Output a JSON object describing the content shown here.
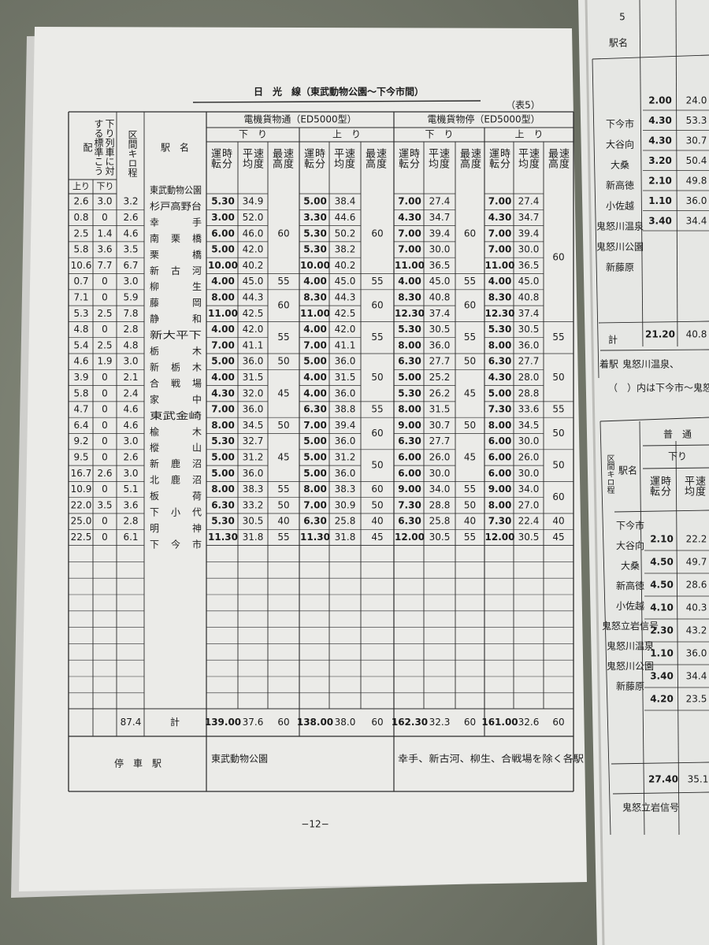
{
  "title": "日　光　線（東武動物公園～下今市間）",
  "table_no": "（表5）",
  "header": {
    "gradient": "下り列車に対する標準こう配",
    "up": "上り",
    "down": "下り",
    "km": "区間キロ程",
    "station": "駅　名",
    "groups": [
      {
        "name": "電機貨物通（ED5000型）",
        "dirs": [
          "下　り",
          "上　り"
        ]
      },
      {
        "name": "電機貨物停（ED5000型）",
        "dirs": [
          "下　り",
          "上　り"
        ]
      }
    ],
    "cols": [
      "運転時分",
      "平均速度",
      "最高速度"
    ]
  },
  "stations": [
    "東武動物公園",
    "杉戸高野台",
    "幸手",
    "南栗橋",
    "栗橋",
    "新古河",
    "柳生",
    "藤岡",
    "静和",
    "新大平下",
    "栃木",
    "新栃木",
    "合戦場",
    "家中",
    "東武金崎",
    "楡木",
    "樅山",
    "新鹿沼",
    "北鹿沼",
    "板荷",
    "下小代",
    "明神",
    "下今市"
  ],
  "intervals": [
    [
      "2.6",
      "3.0",
      "3.2"
    ],
    [
      "0.8",
      "0",
      "2.6"
    ],
    [
      "2.5",
      "1.4",
      "4.6"
    ],
    [
      "5.8",
      "3.6",
      "3.5"
    ],
    [
      "10.6",
      "7.7",
      "6.7"
    ],
    [
      "0.7",
      "0",
      "3.0"
    ],
    [
      "7.1",
      "0",
      "5.9"
    ],
    [
      "5.3",
      "2.5",
      "7.8"
    ],
    [
      "4.8",
      "0",
      "2.8"
    ],
    [
      "5.4",
      "2.5",
      "4.8"
    ],
    [
      "4.6",
      "1.9",
      "3.0"
    ],
    [
      "3.9",
      "0",
      "2.1"
    ],
    [
      "5.8",
      "0",
      "2.4"
    ],
    [
      "4.7",
      "0",
      "4.6"
    ],
    [
      "6.4",
      "0",
      "4.6"
    ],
    [
      "9.2",
      "0",
      "3.0"
    ],
    [
      "9.5",
      "0",
      "2.6"
    ],
    [
      "16.7",
      "2.6",
      "3.0"
    ],
    [
      "10.9",
      "0",
      "5.1"
    ],
    [
      "22.0",
      "3.5",
      "3.6"
    ],
    [
      "25.0",
      "0",
      "2.8"
    ],
    [
      "22.5",
      "0",
      "6.1"
    ]
  ],
  "runs": [
    {
      "times": [
        "5.30",
        "3.00",
        "6.00",
        "5.00",
        "10.00",
        "4.00",
        "8.00",
        "11.00",
        "4.00",
        "7.00",
        "5.00",
        "4.00",
        "4.30",
        "7.00",
        "8.00",
        "5.30",
        "5.00",
        "5.00",
        "8.00",
        "6.30",
        "5.30",
        "11.30"
      ],
      "speeds": [
        "34.9",
        "52.0",
        "46.0",
        "42.0",
        "40.2",
        "45.0",
        "44.3",
        "42.5",
        "42.0",
        "41.1",
        "36.0",
        "31.5",
        "32.0",
        "36.0",
        "34.5",
        "32.7",
        "31.2",
        "36.0",
        "38.3",
        "33.2",
        "30.5",
        "31.8"
      ],
      "max": [
        {
          "text": "60",
          "rows": 5
        },
        {
          "text": "55",
          "rows": 1
        },
        {
          "text": "60",
          "rows": 2
        },
        {
          "text": "55",
          "rows": 2
        },
        {
          "text": "50",
          "rows": 1
        },
        {
          "text": "45",
          "rows": 3
        },
        {
          "text": "50",
          "rows": 1
        },
        {
          "text": "45",
          "rows": 3
        },
        {
          "text": "55",
          "rows": 1
        },
        {
          "text": "50",
          "rows": 1
        },
        {
          "text": "40",
          "rows": 1
        },
        {
          "text": "55",
          "rows": 1
        }
      ]
    },
    {
      "times": [
        "5.00",
        "3.30",
        "5.30",
        "5.30",
        "10.00",
        "4.00",
        "8.30",
        "11.00",
        "4.00",
        "7.00",
        "5.00",
        "4.00",
        "4.00",
        "6.30",
        "7.00",
        "5.00",
        "5.00",
        "5.00",
        "8.00",
        "7.00",
        "6.30",
        "11.30"
      ],
      "speeds": [
        "38.4",
        "44.6",
        "50.2",
        "38.2",
        "40.2",
        "45.0",
        "44.3",
        "42.5",
        "42.0",
        "41.1",
        "36.0",
        "31.5",
        "36.0",
        "38.8",
        "39.4",
        "36.0",
        "31.2",
        "36.0",
        "38.3",
        "30.9",
        "25.8",
        "31.8"
      ],
      "max": [
        {
          "text": "60",
          "rows": 5
        },
        {
          "text": "55",
          "rows": 1
        },
        {
          "text": "60",
          "rows": 2
        },
        {
          "text": "55",
          "rows": 2
        },
        {
          "text": "50",
          "rows": 3
        },
        {
          "text": "55",
          "rows": 1
        },
        {
          "text": "60",
          "rows": 2
        },
        {
          "text": "50",
          "rows": 2
        },
        {
          "text": "60",
          "rows": 1
        },
        {
          "text": "50",
          "rows": 1
        },
        {
          "text": "40",
          "rows": 1
        },
        {
          "text": "45",
          "rows": 1
        }
      ]
    },
    {
      "times": [
        "7.00",
        "4.30",
        "7.00",
        "7.00",
        "11.00",
        "4.00",
        "8.30",
        "12.30",
        "5.30",
        "8.00",
        "6.30",
        "5.00",
        "5.30",
        "8.00",
        "9.00",
        "6.30",
        "6.00",
        "6.00",
        "9.00",
        "7.30",
        "6.30",
        "12.00"
      ],
      "speeds": [
        "27.4",
        "34.7",
        "39.4",
        "30.0",
        "36.5",
        "45.0",
        "40.8",
        "37.4",
        "30.5",
        "36.0",
        "27.7",
        "25.2",
        "26.2",
        "31.5",
        "30.7",
        "27.7",
        "26.0",
        "30.0",
        "34.0",
        "28.8",
        "25.8",
        "30.5"
      ],
      "max": [
        {
          "text": "60",
          "rows": 5
        },
        {
          "text": "55",
          "rows": 1
        },
        {
          "text": "60",
          "rows": 2
        },
        {
          "text": "55",
          "rows": 2
        },
        {
          "text": "50",
          "rows": 1
        },
        {
          "text": "45",
          "rows": 3
        },
        {
          "text": "50",
          "rows": 1
        },
        {
          "text": "45",
          "rows": 3
        },
        {
          "text": "55",
          "rows": 1
        },
        {
          "text": "50",
          "rows": 1
        },
        {
          "text": "40",
          "rows": 1
        },
        {
          "text": "55",
          "rows": 1
        }
      ]
    },
    {
      "times": [
        "7.00",
        "4.30",
        "7.00",
        "7.00",
        "11.00",
        "4.00",
        "8.30",
        "12.30",
        "5.30",
        "8.00",
        "6.30",
        "4.30",
        "5.00",
        "7.30",
        "8.00",
        "6.00",
        "6.00",
        "6.00",
        "9.00",
        "8.00",
        "7.30",
        "12.00"
      ],
      "speeds": [
        "27.4",
        "34.7",
        "39.4",
        "30.0",
        "36.5",
        "45.0",
        "40.8",
        "37.4",
        "30.5",
        "36.0",
        "27.7",
        "28.0",
        "28.8",
        "33.6",
        "34.5",
        "30.0",
        "26.0",
        "30.0",
        "34.0",
        "27.0",
        "22.4",
        "30.5"
      ],
      "max": [
        {
          "text": "60",
          "rows": 8
        },
        {
          "text": "55",
          "rows": 2
        },
        {
          "text": "50",
          "rows": 3
        },
        {
          "text": "55",
          "rows": 1
        },
        {
          "text": "50",
          "rows": 2
        },
        {
          "text": "50",
          "rows": 2
        },
        {
          "text": "60",
          "rows": 2
        },
        {
          "text": "40",
          "rows": 1
        },
        {
          "text": "45",
          "rows": 1
        }
      ]
    }
  ],
  "total": {
    "km": "87.4",
    "label": "計",
    "runs": [
      [
        "139.00",
        "37.6",
        "60"
      ],
      [
        "138.00",
        "38.0",
        "60"
      ],
      [
        "162.30",
        "32.3",
        "60"
      ],
      [
        "161.00",
        "32.6",
        "60"
      ]
    ]
  },
  "stops": {
    "label": "停　車　駅",
    "through": "東武動物公園",
    "local": "幸手、新古河、柳生、合戦場を除く各駅"
  },
  "page_number": "−12−",
  "right_page": {
    "table_no": "5",
    "top": {
      "station_header": "駅名",
      "stations": [
        "下今市",
        "大谷向",
        "大桑",
        "新高徳",
        "小佐越",
        "鬼怒川温泉",
        "鬼怒川公園",
        "新藤原"
      ],
      "rows": [
        [
          "2.00",
          "24.0"
        ],
        [
          "4.30",
          "53.3"
        ],
        [
          "4.30",
          "30.7"
        ],
        [
          "3.20",
          "50.4"
        ],
        [
          "2.10",
          "49.8"
        ],
        [
          "1.10",
          "36.0"
        ],
        [
          "3.40",
          "34.4"
        ]
      ],
      "total_label": "計",
      "total": [
        "21.20",
        "40.8"
      ],
      "arrival_label": "着駅",
      "arrival": "鬼怒川温泉、"
    },
    "note": "（　）内は下今市～鬼怒川",
    "bottom": {
      "group": "普　通",
      "dir": "下り",
      "km": "区間キロ程",
      "station_header": "駅名",
      "cols": [
        "運転時分",
        "平均速度"
      ],
      "stations": [
        "下今市",
        "大谷向",
        "大桑",
        "新高徳",
        "小佐越",
        "鬼怒立岩信号",
        "鬼怒川温泉",
        "鬼怒川公園",
        "新藤原"
      ],
      "rows": [
        [
          "2.10",
          "22.2"
        ],
        [
          "4.50",
          "49.7"
        ],
        [
          "4.50",
          "28.6"
        ],
        [
          "4.10",
          "40.3"
        ],
        [
          "2.30",
          "43.2"
        ],
        [
          "1.10",
          "36.0"
        ],
        [
          "3.40",
          "34.4"
        ],
        [
          "4.20",
          "23.5"
        ]
      ],
      "total": [
        "27.40",
        "35.1"
      ],
      "foot": "鬼怒立岩信号"
    }
  }
}
